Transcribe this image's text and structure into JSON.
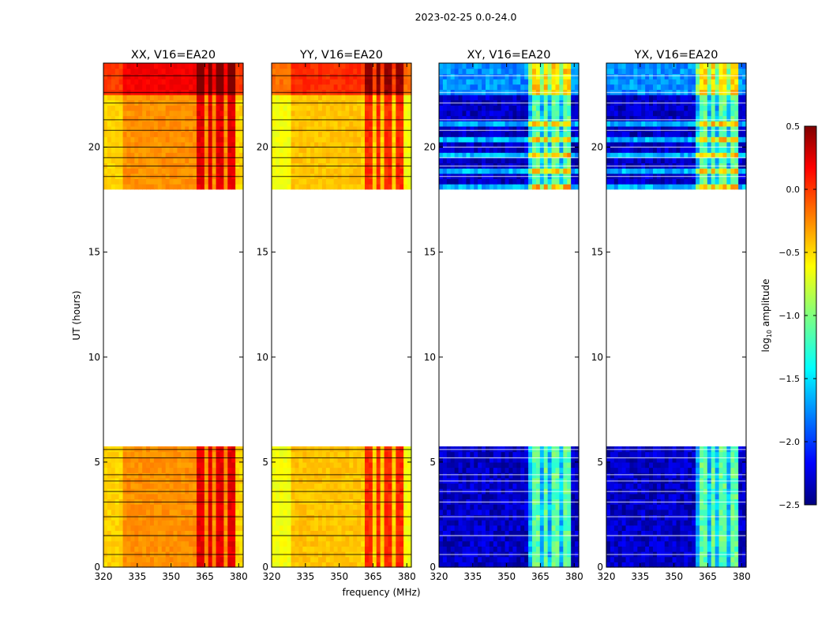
{
  "figure_title": "2023-02-25 0.0-24.0",
  "chart_data": {
    "type": "heatmap",
    "title": "2023-02-25 0.0-24.0",
    "xlabel": "frequency (MHz)",
    "ylabel": "UT (hours)",
    "xlim": [
      320,
      382
    ],
    "ylim": [
      0,
      24
    ],
    "xticks": [
      320,
      335,
      350,
      365,
      380
    ],
    "yticks": [
      0,
      5,
      10,
      15,
      20
    ],
    "data_gap_ut": [
      5.8,
      18.1
    ],
    "high_amplitude_band_mhz": [
      360,
      378
    ],
    "panels": [
      {
        "name": "XX",
        "title": "XX, V16=EA20",
        "polarization": "parallel",
        "typical_log10_amp": -0.3,
        "band_log10_amp": 0.2
      },
      {
        "name": "YY",
        "title": "YY, V16=EA20",
        "polarization": "parallel",
        "typical_log10_amp": -0.45,
        "band_log10_amp": 0.0
      },
      {
        "name": "XY",
        "title": "XY, V16=EA20",
        "polarization": "cross",
        "typical_log10_amp": -2.3,
        "band_log10_amp": -1.1
      },
      {
        "name": "YX",
        "title": "YX, V16=EA20",
        "polarization": "cross",
        "typical_log10_amp": -2.3,
        "band_log10_amp": -1.1
      }
    ],
    "colorbar": {
      "label": "log10 amplitude",
      "label_base": "log",
      "label_sub": "10",
      "label_rest": " amplitude",
      "min": -2.5,
      "max": 0.5,
      "ticks": [
        0.5,
        0.0,
        -0.5,
        -1.0,
        -1.5,
        -2.0,
        -2.5
      ],
      "tick_labels": [
        "0.5",
        "0.0",
        "−0.5",
        "−1.0",
        "−1.5",
        "−2.0",
        "−2.5"
      ],
      "colormap": "jet"
    }
  }
}
